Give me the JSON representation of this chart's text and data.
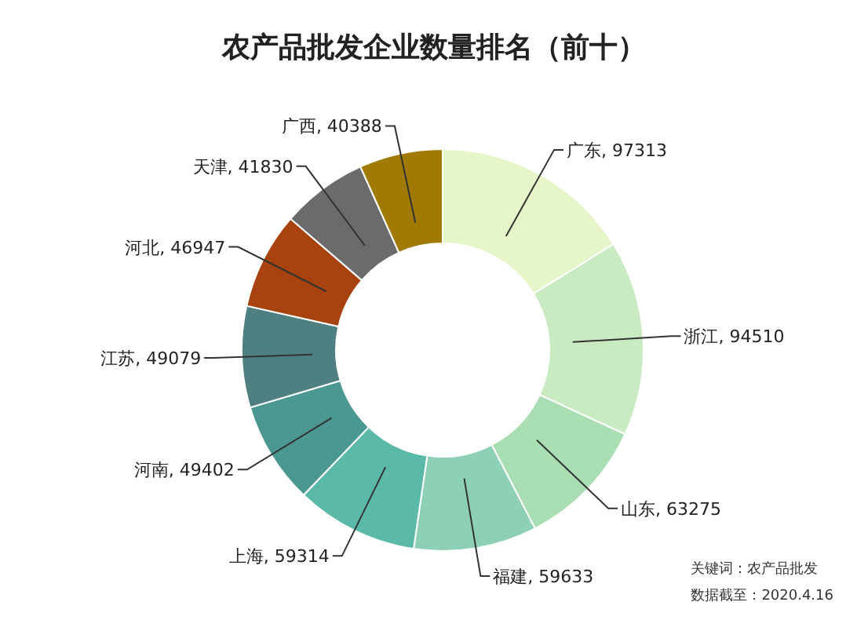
{
  "chart_data": {
    "type": "donut",
    "title": "农产品批发企业数量排名（前十）",
    "categories": [
      "广东",
      "浙江",
      "山东",
      "福建",
      "上海",
      "河南",
      "江苏",
      "河北",
      "天津",
      "广西"
    ],
    "values": [
      97313,
      94510,
      63275,
      59633,
      59314,
      49402,
      49079,
      46947,
      41830,
      40388
    ],
    "colors": [
      "#e6f6c9",
      "#c9ebc1",
      "#a9ddb2",
      "#8ed0b5",
      "#5ab9a9",
      "#4b9791",
      "#4e8082",
      "#a8430f",
      "#6b6b6b",
      "#a07a02"
    ],
    "value_labels": [
      ", 97313",
      ", 94510",
      ", 63275",
      ", 59633",
      ", 59314",
      ", 49402",
      ", 49079",
      ", 46947",
      ", 41830",
      ", 40388"
    ],
    "annotations": [
      "关键词：农产品批发",
      "数据截至：2020.4.16"
    ]
  }
}
